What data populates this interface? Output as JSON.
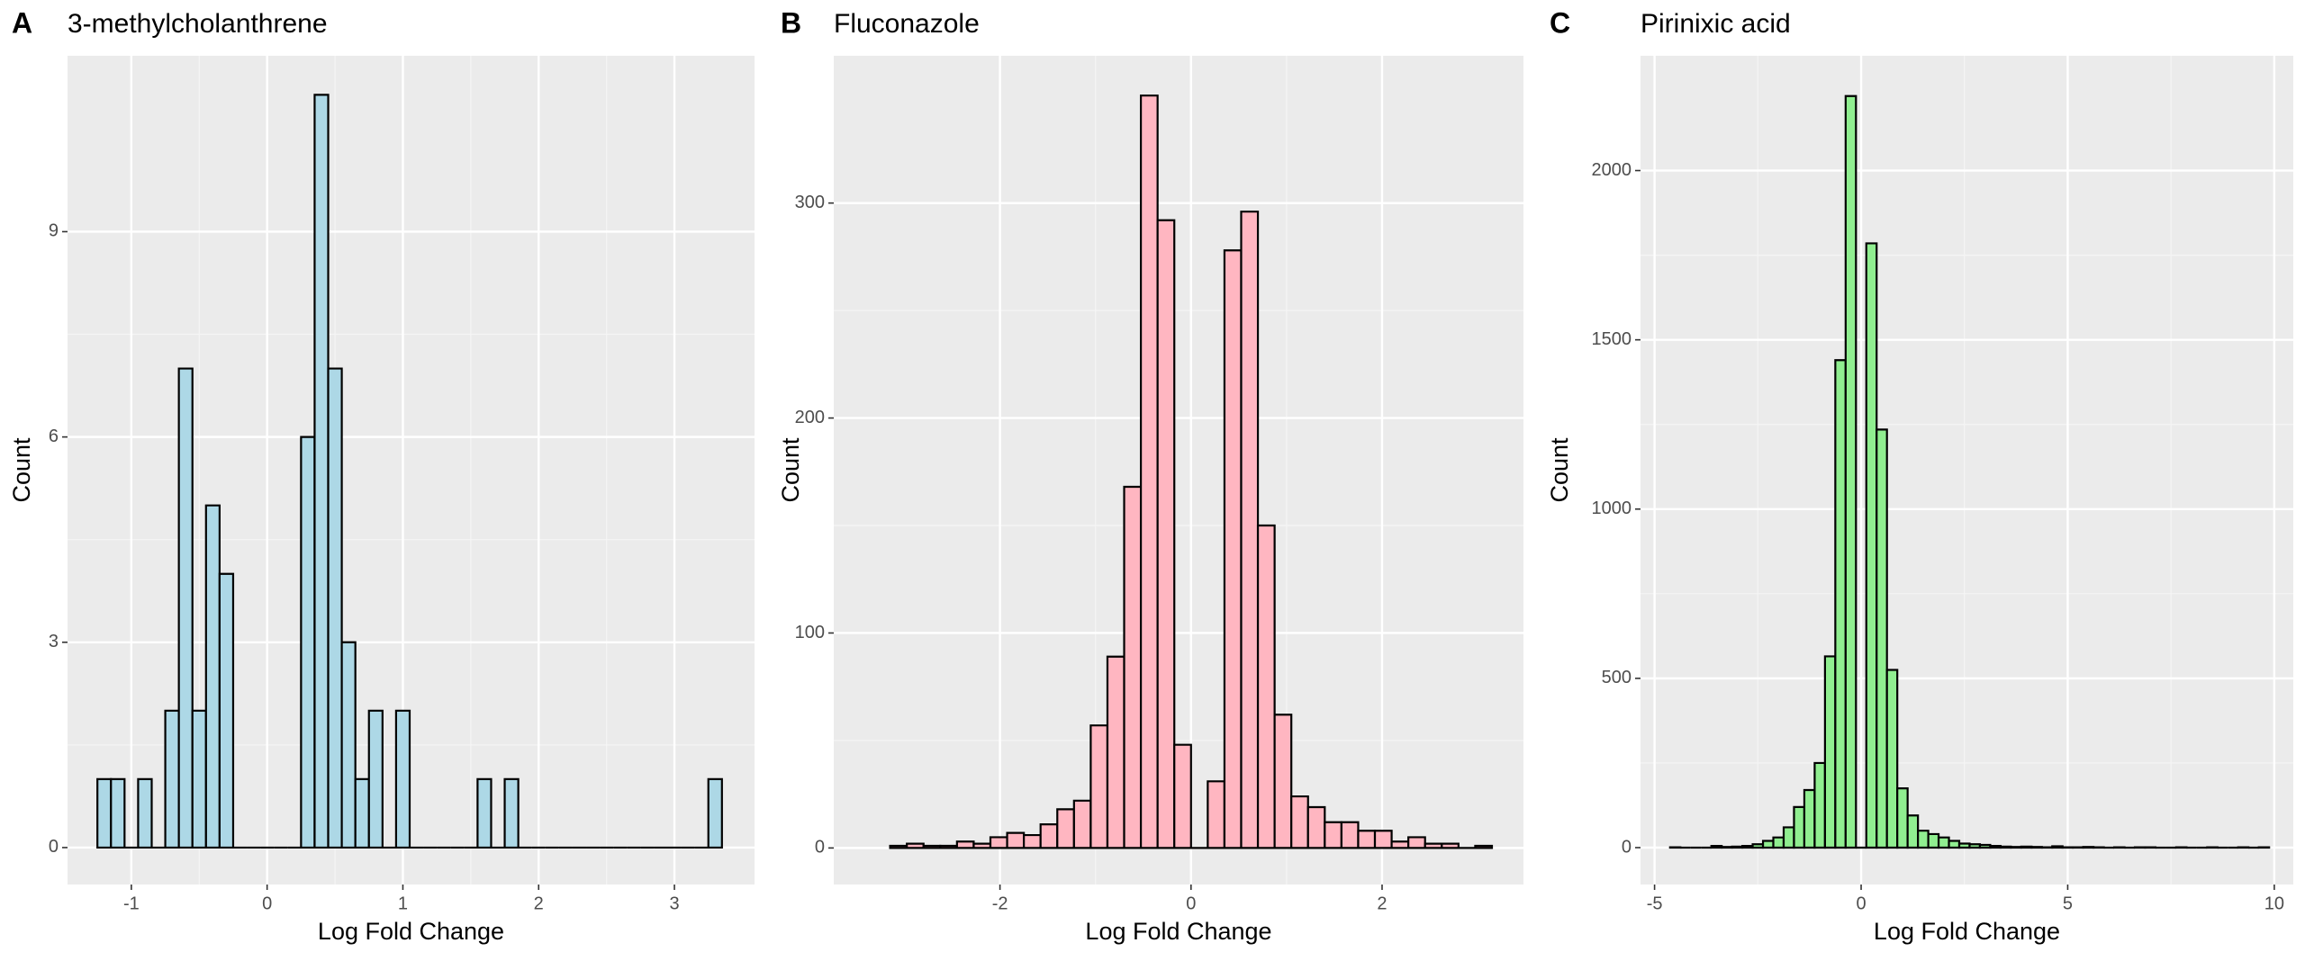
{
  "chart_data": [
    {
      "type": "histogram",
      "panel": "A",
      "title": "3-methylcholanthrene",
      "xlabel": "Log Fold Change",
      "ylabel": "Count",
      "color": "#add8e6",
      "bins": [
        -1.25,
        -1.15,
        -1.05,
        -0.95,
        -0.85,
        -0.75,
        -0.65,
        -0.55,
        -0.45,
        -0.35,
        -0.25,
        -0.15,
        -0.05,
        0.05,
        0.15,
        0.25,
        0.35,
        0.45,
        0.55,
        0.65,
        0.75,
        0.85,
        0.95,
        1.05,
        1.15,
        1.25,
        1.35,
        1.45,
        1.55,
        1.65,
        1.75,
        1.85,
        1.95,
        2.05,
        2.15,
        2.25,
        2.35,
        2.45,
        2.55,
        2.65,
        2.75,
        2.85,
        2.95,
        3.05,
        3.15,
        3.25,
        3.35
      ],
      "counts": [
        1,
        1,
        0,
        1,
        0,
        2,
        7,
        2,
        5,
        4,
        0,
        0,
        0,
        0,
        0,
        6,
        11,
        7,
        3,
        1,
        2,
        0,
        2,
        0,
        0,
        0,
        0,
        0,
        1,
        0,
        1,
        0,
        0,
        0,
        0,
        0,
        0,
        0,
        0,
        0,
        0,
        0,
        0,
        0,
        0,
        1
      ],
      "xlim": [
        -1.47,
        3.59
      ],
      "ylim": [
        -0.54,
        11.57
      ],
      "xticks": [
        -1,
        0,
        1,
        2,
        3
      ],
      "yticks": [
        0,
        3,
        6,
        9
      ]
    },
    {
      "type": "histogram",
      "panel": "B",
      "title": "Fluconazole",
      "xlabel": "Log Fold Change",
      "ylabel": "Count",
      "color": "#ffb6c1",
      "bins": [
        -3.15,
        -2.975,
        -2.8,
        -2.625,
        -2.45,
        -2.275,
        -2.1,
        -1.925,
        -1.75,
        -1.575,
        -1.4,
        -1.225,
        -1.05,
        -0.875,
        -0.7,
        -0.525,
        -0.35,
        -0.175,
        0,
        0.175,
        0.35,
        0.525,
        0.7,
        0.875,
        1.05,
        1.225,
        1.4,
        1.575,
        1.75,
        1.925,
        2.1,
        2.275,
        2.45,
        2.625,
        2.8,
        2.975,
        3.15
      ],
      "counts": [
        1,
        2,
        1,
        1,
        3,
        2,
        5,
        7,
        6,
        11,
        18,
        22,
        57,
        89,
        168,
        350,
        292,
        48,
        0,
        31,
        278,
        296,
        150,
        62,
        24,
        19,
        12,
        12,
        8,
        8,
        3,
        5,
        2,
        2,
        0,
        1
      ],
      "xlim": [
        -3.74,
        3.48
      ],
      "ylim": [
        -17,
        368.5
      ],
      "xticks": [
        -2,
        0,
        2
      ],
      "yticks": [
        0,
        100,
        200,
        300
      ]
    },
    {
      "type": "histogram",
      "panel": "C",
      "title": "Pirinixic acid",
      "xlabel": "Log Fold Change",
      "ylabel": "Count",
      "color": "#90ee90",
      "bins": [
        -4.625,
        -4.375,
        -4.125,
        -3.875,
        -3.625,
        -3.375,
        -3.125,
        -2.875,
        -2.625,
        -2.375,
        -2.125,
        -1.875,
        -1.625,
        -1.375,
        -1.125,
        -0.875,
        -0.625,
        -0.375,
        -0.125,
        0.125,
        0.375,
        0.625,
        0.875,
        1.125,
        1.375,
        1.625,
        1.875,
        2.125,
        2.375,
        2.625,
        2.875,
        3.125,
        3.375,
        3.625,
        3.875,
        4.125,
        4.375,
        4.625,
        4.875,
        5.125,
        5.375,
        5.625,
        5.875,
        6.125,
        6.375,
        6.625,
        6.875,
        7.125,
        7.375,
        7.625,
        7.875,
        8.125,
        8.375,
        8.625,
        8.875,
        9.125,
        9.375,
        9.625,
        9.875
      ],
      "counts": [
        1,
        0,
        0,
        0,
        5,
        2,
        3,
        5,
        10,
        20,
        30,
        60,
        120,
        170,
        250,
        565,
        1440,
        2220,
        0,
        1785,
        1235,
        525,
        175,
        95,
        50,
        40,
        30,
        20,
        12,
        10,
        8,
        5,
        3,
        2,
        3,
        2,
        1,
        4,
        1,
        1,
        2,
        1,
        0,
        1,
        0,
        1,
        1,
        0,
        0,
        1,
        0,
        0,
        1,
        0,
        0,
        1,
        0,
        1
      ],
      "xlim": [
        -5.34,
        10.46
      ],
      "ylim": [
        -109,
        2339
      ],
      "xticks": [
        -5,
        0,
        5,
        10
      ],
      "yticks": [
        0,
        500,
        1000,
        1500,
        2000
      ]
    }
  ]
}
